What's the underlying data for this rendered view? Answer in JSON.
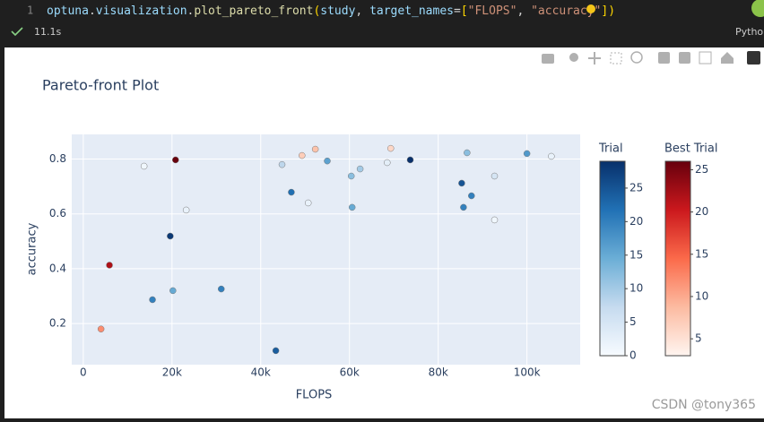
{
  "notebook": {
    "line_number": "1",
    "code_parts": [
      "optuna",
      ".",
      "visualization",
      ".",
      "plot_pareto_front",
      "(",
      "study",
      ", ",
      "target_names",
      "=",
      "[",
      "\"FLOPS\"",
      ", ",
      "\"accuracy\"",
      "]",
      ")"
    ],
    "time": "11.1s",
    "kernel": "Pytho",
    "watermark": "CSDN @tony365"
  },
  "chart_data": {
    "type": "scatter",
    "title": "Pareto-front Plot",
    "x_label": "FLOPS",
    "y_label": "accuracy",
    "xlim": [
      -2600,
      112000
    ],
    "ylim": [
      0.05,
      0.89
    ],
    "xticks": [
      0,
      {
        "value": 20000,
        "label": "20k"
      },
      {
        "value": 40000,
        "label": "40k"
      },
      {
        "value": 60000,
        "label": "60k"
      },
      {
        "value": 80000,
        "label": "80k"
      },
      {
        "value": 100000,
        "label": "100k"
      }
    ],
    "yticks": [
      0.2,
      0.4,
      0.6,
      0.8
    ],
    "grid": true,
    "series": [
      {
        "name": "Trial",
        "colorscale": [
          "#f7fbff",
          "#c6dbef",
          "#6baed6",
          "#2171b5",
          "#08306b"
        ],
        "clim": [
          0,
          29
        ],
        "cticks": [
          0,
          5,
          10,
          15,
          20,
          25
        ],
        "x": [
          13700,
          23200,
          19600,
          15600,
          20200,
          31100,
          43400,
          44800,
          46900,
          50700,
          55000,
          60400,
          62400,
          60600,
          68500,
          73700,
          85300,
          86500,
          87500,
          85700,
          92700,
          92700,
          100000,
          105500
        ],
        "values": [
          0.774,
          0.614,
          0.519,
          0.287,
          0.32,
          0.326,
          0.101,
          0.78,
          0.679,
          0.64,
          0.793,
          0.738,
          0.764,
          0.624,
          0.787,
          0.797,
          0.712,
          0.823,
          0.666,
          0.624,
          0.738,
          0.578,
          0.82,
          0.81
        ],
        "color_values": [
          1,
          2,
          28,
          20,
          15,
          20,
          24,
          8,
          22,
          2,
          16,
          12,
          10,
          15,
          3,
          29,
          25,
          12,
          20,
          20,
          5,
          1,
          17,
          2
        ]
      },
      {
        "name": "Best Trial",
        "colorscale": [
          "#fff5f0",
          "#fcbba1",
          "#fb6a4a",
          "#cb181d",
          "#67000d"
        ],
        "clim": [
          3,
          26
        ],
        "cticks": [
          5,
          10,
          15,
          20,
          25
        ],
        "x": [
          20800,
          5900,
          4000,
          49300,
          52300,
          69300
        ],
        "values": [
          0.797,
          0.413,
          0.18,
          0.813,
          0.836,
          0.839
        ],
        "color_values": [
          26,
          22,
          12,
          7,
          8,
          6
        ]
      }
    ]
  }
}
